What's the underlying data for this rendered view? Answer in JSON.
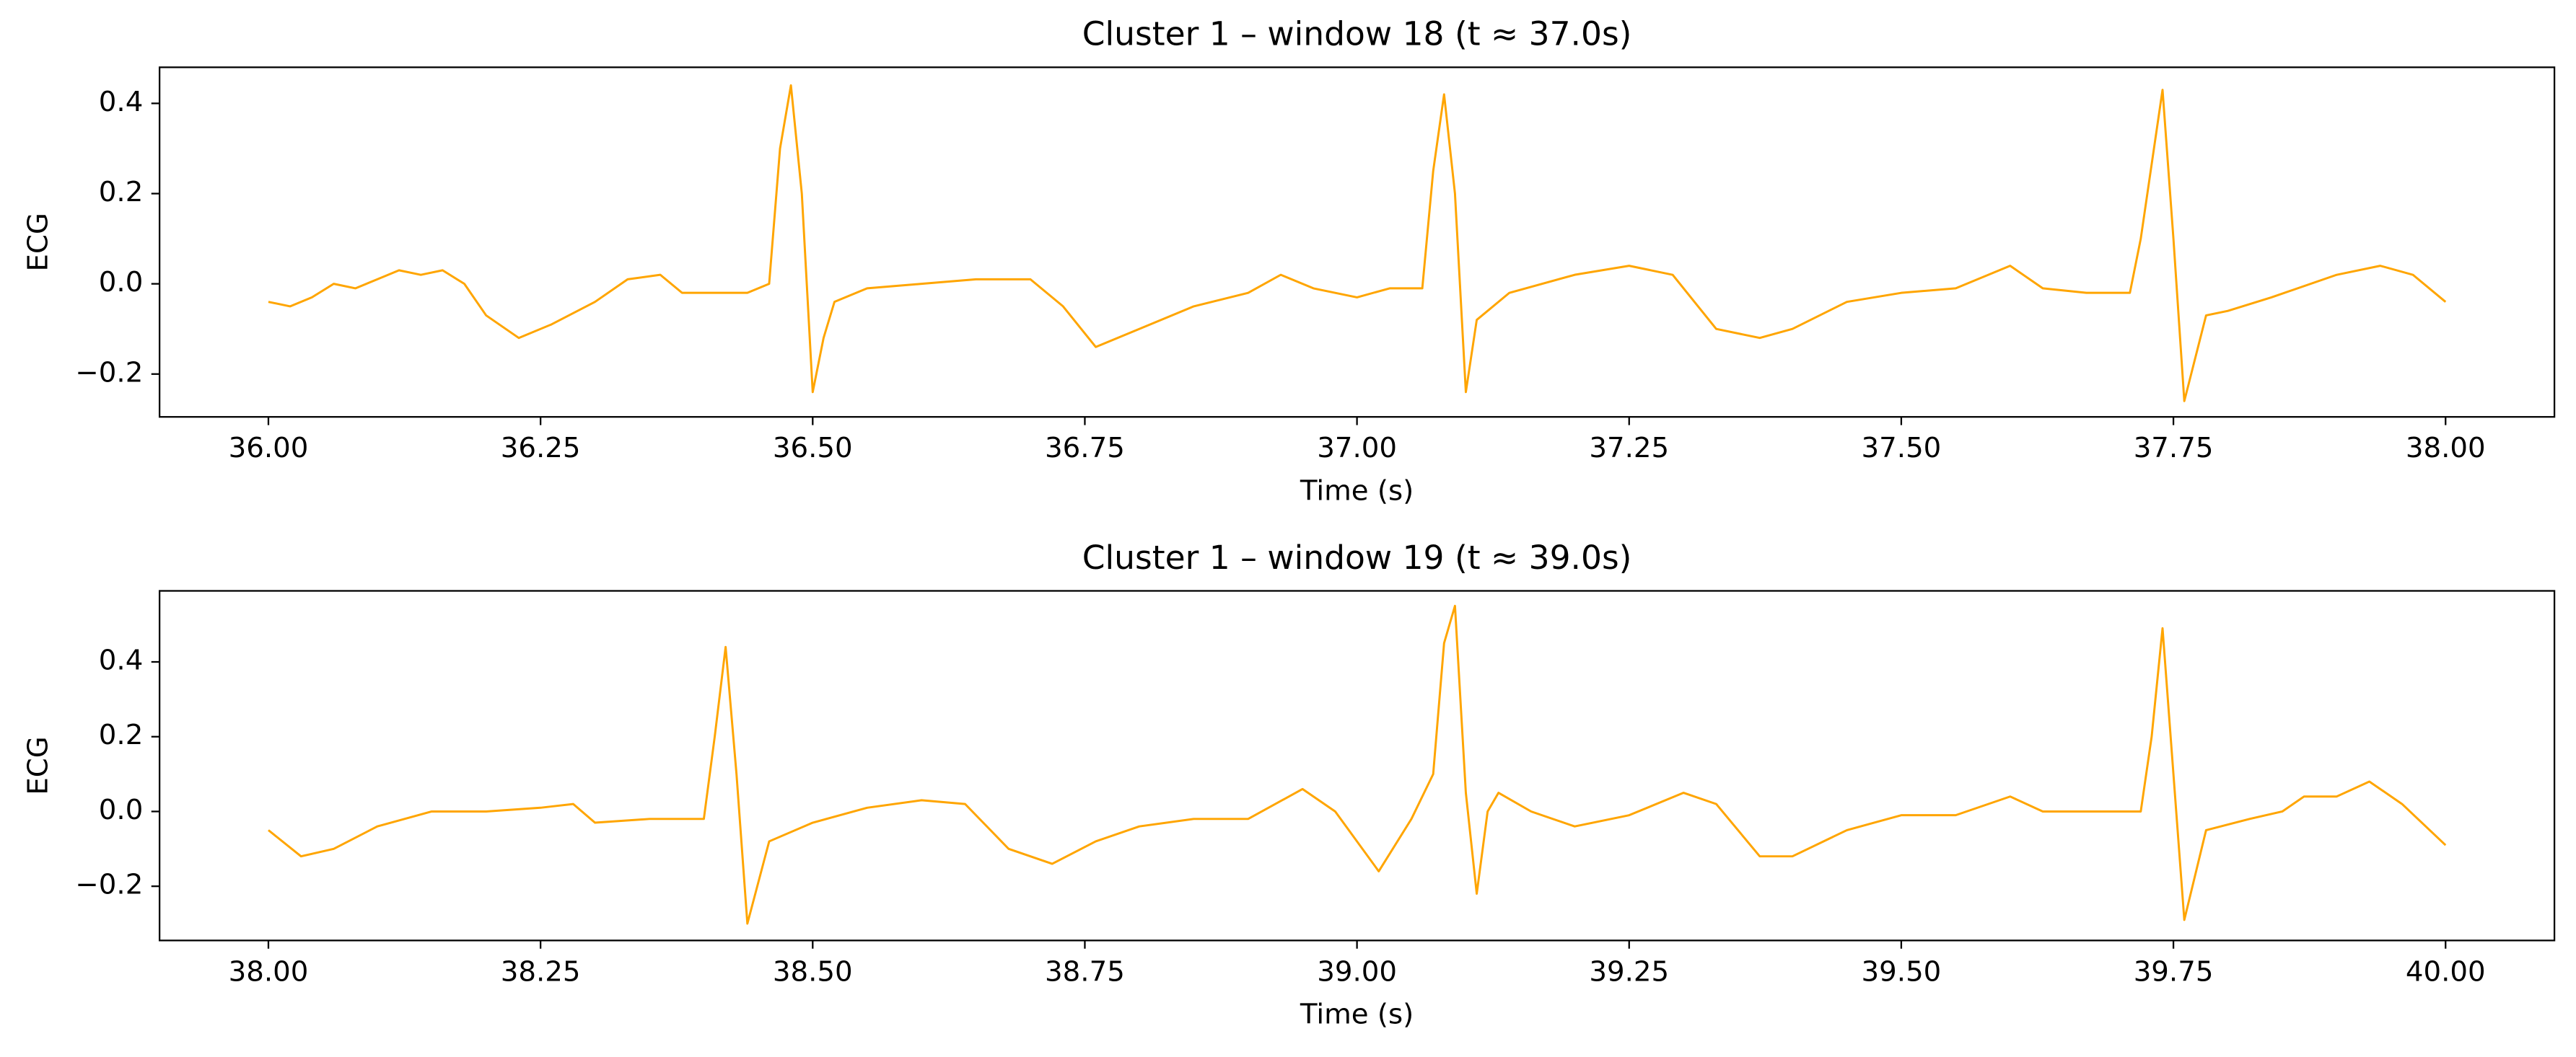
{
  "chart_data": [
    {
      "type": "line",
      "title": "Cluster 1 – window 18 (t ≈ 37.0s)",
      "xlabel": "Time (s)",
      "ylabel": "ECG",
      "color": "#ffa500",
      "xlim": [
        35.9,
        38.1
      ],
      "ylim": [
        -0.295,
        0.48
      ],
      "xticks": [
        {
          "value": 36,
          "label": "36.00"
        },
        {
          "value": 36.25,
          "label": "36.25"
        },
        {
          "value": 36.5,
          "label": "36.50"
        },
        {
          "value": 36.75,
          "label": "36.75"
        },
        {
          "value": 37,
          "label": "37.00"
        },
        {
          "value": 37.25,
          "label": "37.25"
        },
        {
          "value": 37.5,
          "label": "37.50"
        },
        {
          "value": 37.75,
          "label": "37.75"
        },
        {
          "value": 38,
          "label": "38.00"
        }
      ],
      "yticks": [
        {
          "value": -0.2,
          "label": "−0.2"
        },
        {
          "value": 0,
          "label": "0.0"
        },
        0.2,
        0.4
      ],
      "x": [
        36.0,
        36.02,
        36.04,
        36.06,
        36.08,
        36.1,
        36.12,
        36.14,
        36.16,
        36.18,
        36.2,
        36.23,
        36.26,
        36.3,
        36.33,
        36.36,
        36.38,
        36.41,
        36.44,
        36.46,
        36.47,
        36.48,
        36.49,
        36.5,
        36.51,
        36.52,
        36.55,
        36.6,
        36.65,
        36.7,
        36.73,
        36.76,
        36.8,
        36.85,
        36.9,
        36.93,
        36.96,
        37.0,
        37.03,
        37.06,
        37.07,
        37.08,
        37.09,
        37.1,
        37.11,
        37.14,
        37.2,
        37.25,
        37.29,
        37.33,
        37.37,
        37.4,
        37.45,
        37.5,
        37.55,
        37.6,
        37.63,
        37.67,
        37.71,
        37.72,
        37.74,
        37.75,
        37.76,
        37.78,
        37.8,
        37.84,
        37.9,
        37.94,
        37.97,
        38.0
      ],
      "values": [
        -0.04,
        -0.05,
        -0.03,
        0.0,
        -0.01,
        0.01,
        0.03,
        0.02,
        0.03,
        0.0,
        -0.07,
        -0.12,
        -0.09,
        -0.04,
        0.01,
        0.02,
        -0.02,
        -0.02,
        -0.02,
        0.0,
        0.3,
        0.44,
        0.2,
        -0.24,
        -0.12,
        -0.04,
        -0.01,
        0.0,
        0.01,
        0.01,
        -0.05,
        -0.14,
        -0.1,
        -0.05,
        -0.02,
        0.02,
        -0.01,
        -0.03,
        -0.01,
        -0.01,
        0.25,
        0.42,
        0.2,
        -0.24,
        -0.08,
        -0.02,
        0.02,
        0.04,
        0.02,
        -0.1,
        -0.12,
        -0.1,
        -0.04,
        -0.02,
        -0.01,
        0.04,
        -0.01,
        -0.02,
        -0.02,
        0.1,
        0.43,
        0.1,
        -0.26,
        -0.07,
        -0.06,
        -0.03,
        0.02,
        0.04,
        0.02,
        -0.04
      ]
    },
    {
      "type": "line",
      "title": "Cluster 1 – window 19 (t ≈ 39.0s)",
      "xlabel": "Time (s)",
      "ylabel": "ECG",
      "color": "#ffa500",
      "xlim": [
        37.9,
        40.1
      ],
      "ylim": [
        -0.345,
        0.59
      ],
      "xticks": [
        {
          "value": 38,
          "label": "38.00"
        },
        {
          "value": 38.25,
          "label": "38.25"
        },
        {
          "value": 38.5,
          "label": "38.50"
        },
        {
          "value": 38.75,
          "label": "38.75"
        },
        {
          "value": 39,
          "label": "39.00"
        },
        {
          "value": 39.25,
          "label": "39.25"
        },
        {
          "value": 39.5,
          "label": "39.50"
        },
        {
          "value": 39.75,
          "label": "39.75"
        },
        {
          "value": 40,
          "label": "40.00"
        }
      ],
      "yticks": [
        {
          "value": -0.2,
          "label": "−0.2"
        },
        {
          "value": 0,
          "label": "0.0"
        },
        0.2,
        0.4
      ],
      "x": [
        38.0,
        38.03,
        38.06,
        38.1,
        38.15,
        38.2,
        38.25,
        38.28,
        38.3,
        38.35,
        38.4,
        38.41,
        38.42,
        38.43,
        38.44,
        38.46,
        38.5,
        38.55,
        38.6,
        38.64,
        38.68,
        38.72,
        38.76,
        38.8,
        38.85,
        38.9,
        38.95,
        38.98,
        39.02,
        39.05,
        39.07,
        39.08,
        39.09,
        39.1,
        39.11,
        39.12,
        39.13,
        39.16,
        39.2,
        39.25,
        39.3,
        39.33,
        39.37,
        39.4,
        39.45,
        39.5,
        39.55,
        39.6,
        39.63,
        39.68,
        39.72,
        39.73,
        39.74,
        39.75,
        39.76,
        39.78,
        39.82,
        39.85,
        39.87,
        39.9,
        39.93,
        39.96,
        40.0
      ],
      "values": [
        -0.05,
        -0.12,
        -0.1,
        -0.04,
        0.0,
        0.0,
        0.01,
        0.02,
        -0.03,
        -0.02,
        -0.02,
        0.2,
        0.44,
        0.1,
        -0.3,
        -0.08,
        -0.03,
        0.01,
        0.03,
        0.02,
        -0.1,
        -0.14,
        -0.08,
        -0.04,
        -0.02,
        -0.02,
        0.06,
        0.0,
        -0.16,
        -0.02,
        0.1,
        0.45,
        0.55,
        0.05,
        -0.22,
        0.0,
        0.05,
        0.0,
        -0.04,
        -0.01,
        0.05,
        0.02,
        -0.12,
        -0.12,
        -0.05,
        -0.01,
        -0.01,
        0.04,
        0.0,
        0.0,
        0.0,
        0.2,
        0.49,
        0.1,
        -0.29,
        -0.05,
        -0.02,
        0.0,
        0.04,
        0.04,
        0.08,
        0.02,
        -0.09
      ]
    }
  ]
}
